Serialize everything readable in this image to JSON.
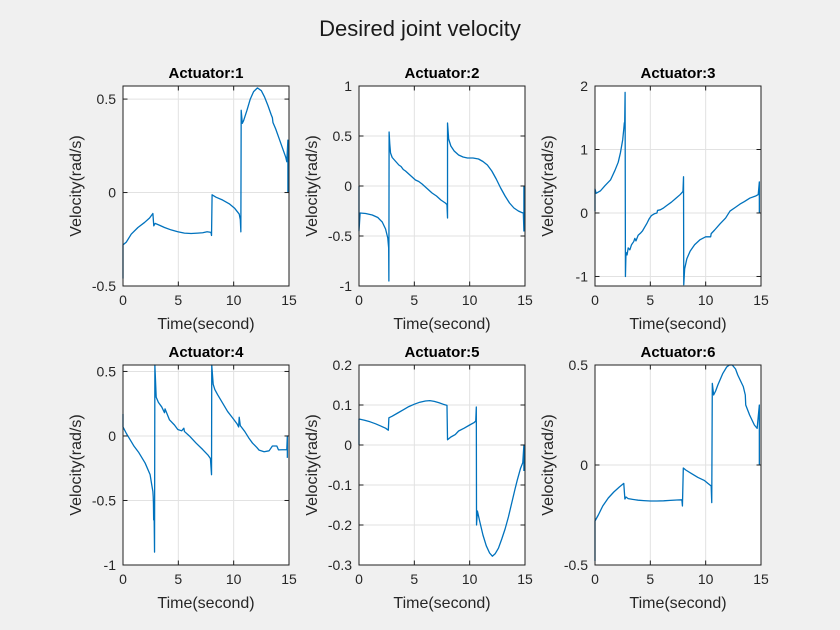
{
  "figure": {
    "title": "Desired joint velocity",
    "bg_color": "#F0F0F0",
    "plot_bg_color": "#FFFFFF",
    "line_color": "#0072BD",
    "axis_color": "#1f1f1f",
    "grid_color": "#E2E2E2",
    "tick_text_color": "#262626",
    "title_text_color": "#000000"
  },
  "chart_data": [
    {
      "type": "line",
      "title": "Actuator:1",
      "xlabel": "Time(second)",
      "ylabel": "Velocity(rad/s)",
      "xlim": [
        0,
        15
      ],
      "ylim": [
        -0.5,
        0.57
      ],
      "xticks": [
        0,
        5,
        10,
        15
      ],
      "yticks": [
        -0.5,
        0,
        0.5
      ],
      "grid": true,
      "points": [
        [
          0,
          -0.46
        ],
        [
          0,
          -0.28
        ],
        [
          0.3,
          -0.265
        ],
        [
          0.75,
          -0.222
        ],
        [
          1.35,
          -0.187
        ],
        [
          1.95,
          -0.16
        ],
        [
          2.4,
          -0.136
        ],
        [
          2.7,
          -0.112
        ],
        [
          2.78,
          -0.178
        ],
        [
          2.9,
          -0.165
        ],
        [
          3.3,
          -0.175
        ],
        [
          3.75,
          -0.187
        ],
        [
          4.35,
          -0.2
        ],
        [
          4.95,
          -0.21
        ],
        [
          5.55,
          -0.217
        ],
        [
          6.15,
          -0.219
        ],
        [
          6.75,
          -0.217
        ],
        [
          7.2,
          -0.215
        ],
        [
          7.6,
          -0.21
        ],
        [
          7.95,
          -0.213
        ],
        [
          8.0,
          -0.23
        ],
        [
          8.05,
          -0.012
        ],
        [
          8.4,
          -0.025
        ],
        [
          9.0,
          -0.04
        ],
        [
          9.6,
          -0.06
        ],
        [
          10.1,
          -0.085
        ],
        [
          10.5,
          -0.115
        ],
        [
          10.6,
          -0.145
        ],
        [
          10.65,
          -0.21
        ],
        [
          10.68,
          0.44
        ],
        [
          10.78,
          0.37
        ],
        [
          10.9,
          0.385
        ],
        [
          11.2,
          0.44
        ],
        [
          11.5,
          0.5
        ],
        [
          11.8,
          0.54
        ],
        [
          12.15,
          0.56
        ],
        [
          12.5,
          0.545
        ],
        [
          12.8,
          0.51
        ],
        [
          13.1,
          0.465
        ],
        [
          13.4,
          0.415
        ],
        [
          13.5,
          0.4
        ],
        [
          13.55,
          0.375
        ],
        [
          13.8,
          0.34
        ],
        [
          14.1,
          0.29
        ],
        [
          14.4,
          0.24
        ],
        [
          14.7,
          0.19
        ],
        [
          14.8,
          0.165
        ],
        [
          14.9,
          0.28
        ],
        [
          14.9,
          0.0
        ]
      ]
    },
    {
      "type": "line",
      "title": "Actuator:2",
      "xlabel": "Time(second)",
      "ylabel": "Velocity(rad/s)",
      "xlim": [
        0,
        15
      ],
      "ylim": [
        -1,
        1
      ],
      "xticks": [
        0,
        5,
        10,
        15
      ],
      "yticks": [
        -1,
        -0.5,
        0,
        0.5,
        1
      ],
      "grid": true,
      "points": [
        [
          0,
          0.0
        ],
        [
          0,
          -0.45
        ],
        [
          0.1,
          -0.27
        ],
        [
          0.6,
          -0.275
        ],
        [
          1.2,
          -0.29
        ],
        [
          1.7,
          -0.315
        ],
        [
          2.1,
          -0.36
        ],
        [
          2.4,
          -0.43
        ],
        [
          2.6,
          -0.52
        ],
        [
          2.68,
          -0.62
        ],
        [
          2.7,
          -0.95
        ],
        [
          2.72,
          0.54
        ],
        [
          2.78,
          0.42
        ],
        [
          2.85,
          0.33
        ],
        [
          3.0,
          0.285
        ],
        [
          3.2,
          0.26
        ],
        [
          3.4,
          0.235
        ],
        [
          3.6,
          0.21
        ],
        [
          3.8,
          0.195
        ],
        [
          4.0,
          0.165
        ],
        [
          4.2,
          0.15
        ],
        [
          4.5,
          0.12
        ],
        [
          4.8,
          0.09
        ],
        [
          5.1,
          0.06
        ],
        [
          5.4,
          0.045
        ],
        [
          5.7,
          0.02
        ],
        [
          6.0,
          -0.01
        ],
        [
          6.3,
          -0.04
        ],
        [
          6.6,
          -0.07
        ],
        [
          7.0,
          -0.1
        ],
        [
          7.4,
          -0.14
        ],
        [
          7.8,
          -0.17
        ],
        [
          7.95,
          -0.185
        ],
        [
          8.0,
          -0.32
        ],
        [
          8.0,
          0.63
        ],
        [
          8.1,
          0.47
        ],
        [
          8.3,
          0.4
        ],
        [
          8.6,
          0.35
        ],
        [
          9.0,
          0.31
        ],
        [
          9.4,
          0.29
        ],
        [
          9.8,
          0.28
        ],
        [
          10.3,
          0.28
        ],
        [
          10.8,
          0.27
        ],
        [
          11.2,
          0.245
        ],
        [
          11.6,
          0.21
        ],
        [
          12.0,
          0.15
        ],
        [
          12.4,
          0.07
        ],
        [
          12.8,
          -0.02
        ],
        [
          13.2,
          -0.1
        ],
        [
          13.6,
          -0.17
        ],
        [
          14.0,
          -0.22
        ],
        [
          14.4,
          -0.25
        ],
        [
          14.7,
          -0.265
        ],
        [
          14.85,
          -0.27
        ],
        [
          14.9,
          -0.45
        ],
        [
          14.9,
          0.0
        ]
      ]
    },
    {
      "type": "line",
      "title": "Actuator:3",
      "xlabel": "Time(second)",
      "ylabel": "Velocity(rad/s)",
      "xlim": [
        0,
        15
      ],
      "ylim": [
        -1.15,
        2
      ],
      "xticks": [
        0,
        5,
        10,
        15
      ],
      "yticks": [
        -1,
        0,
        1,
        2
      ],
      "grid": true,
      "points": [
        [
          0,
          0.03
        ],
        [
          0,
          0.38
        ],
        [
          0.1,
          0.31
        ],
        [
          0.5,
          0.35
        ],
        [
          0.9,
          0.43
        ],
        [
          1.4,
          0.52
        ],
        [
          1.8,
          0.67
        ],
        [
          2.1,
          0.8
        ],
        [
          2.3,
          0.95
        ],
        [
          2.5,
          1.15
        ],
        [
          2.6,
          1.32
        ],
        [
          2.65,
          1.42
        ],
        [
          2.68,
          1.38
        ],
        [
          2.72,
          1.9
        ],
        [
          2.75,
          -1.0
        ],
        [
          2.8,
          -0.62
        ],
        [
          2.9,
          -0.66
        ],
        [
          3.0,
          -0.55
        ],
        [
          3.15,
          -0.58
        ],
        [
          3.3,
          -0.5
        ],
        [
          3.5,
          -0.45
        ],
        [
          3.6,
          -0.4
        ],
        [
          3.7,
          -0.44
        ],
        [
          3.9,
          -0.35
        ],
        [
          4.1,
          -0.32
        ],
        [
          4.3,
          -0.28
        ],
        [
          4.5,
          -0.22
        ],
        [
          4.7,
          -0.16
        ],
        [
          4.9,
          -0.09
        ],
        [
          5.1,
          -0.04
        ],
        [
          5.4,
          -0.01
        ],
        [
          5.6,
          0.0
        ],
        [
          5.65,
          0.04
        ],
        [
          5.9,
          0.05
        ],
        [
          6.2,
          0.08
        ],
        [
          6.5,
          0.12
        ],
        [
          6.9,
          0.17
        ],
        [
          7.3,
          0.23
        ],
        [
          7.7,
          0.29
        ],
        [
          7.95,
          0.34
        ],
        [
          8.0,
          0.57
        ],
        [
          8.02,
          -1.13
        ],
        [
          8.1,
          -0.88
        ],
        [
          8.3,
          -0.72
        ],
        [
          8.6,
          -0.6
        ],
        [
          9.0,
          -0.5
        ],
        [
          9.5,
          -0.42
        ],
        [
          10.0,
          -0.375
        ],
        [
          10.45,
          -0.375
        ],
        [
          10.5,
          -0.325
        ],
        [
          10.8,
          -0.27
        ],
        [
          11.3,
          -0.17
        ],
        [
          11.8,
          -0.08
        ],
        [
          12.2,
          0.03
        ],
        [
          12.7,
          0.09
        ],
        [
          13.1,
          0.14
        ],
        [
          13.5,
          0.18
        ],
        [
          14.0,
          0.235
        ],
        [
          14.55,
          0.27
        ],
        [
          14.75,
          0.29
        ],
        [
          14.85,
          0.49
        ],
        [
          14.85,
          0.0
        ]
      ]
    },
    {
      "type": "line",
      "title": "Actuator:4",
      "xlabel": "Time(second)",
      "ylabel": "Velocity(rad/s)",
      "xlim": [
        0,
        15
      ],
      "ylim": [
        -1,
        0.55
      ],
      "xticks": [
        0,
        5,
        10,
        15
      ],
      "yticks": [
        -1,
        -0.5,
        0,
        0.5
      ],
      "grid": true,
      "points": [
        [
          0,
          0.17
        ],
        [
          0,
          0.07
        ],
        [
          0.3,
          0.02
        ],
        [
          0.65,
          -0.03
        ],
        [
          1.0,
          -0.08
        ],
        [
          1.4,
          -0.125
        ],
        [
          2.0,
          -0.21
        ],
        [
          2.45,
          -0.3
        ],
        [
          2.6,
          -0.38
        ],
        [
          2.7,
          -0.43
        ],
        [
          2.73,
          -0.47
        ],
        [
          2.75,
          -0.52
        ],
        [
          2.77,
          -0.65
        ],
        [
          2.8,
          -0.52
        ],
        [
          2.85,
          -0.9
        ],
        [
          2.88,
          0.55
        ],
        [
          3.0,
          0.3
        ],
        [
          3.2,
          0.26
        ],
        [
          3.5,
          0.225
        ],
        [
          3.75,
          0.18
        ],
        [
          3.8,
          0.21
        ],
        [
          4.2,
          0.125
        ],
        [
          4.65,
          0.085
        ],
        [
          4.95,
          0.05
        ],
        [
          5.3,
          0.04
        ],
        [
          5.5,
          0.06
        ],
        [
          5.55,
          0.035
        ],
        [
          6.0,
          0.0
        ],
        [
          6.6,
          -0.055
        ],
        [
          7.2,
          -0.105
        ],
        [
          7.7,
          -0.15
        ],
        [
          7.9,
          -0.175
        ],
        [
          8.0,
          -0.3
        ],
        [
          8.02,
          0.55
        ],
        [
          8.15,
          0.4
        ],
        [
          8.3,
          0.36
        ],
        [
          8.55,
          0.32
        ],
        [
          9.0,
          0.255
        ],
        [
          9.45,
          0.19
        ],
        [
          9.9,
          0.14
        ],
        [
          10.3,
          0.095
        ],
        [
          10.45,
          0.07
        ],
        [
          10.5,
          0.145
        ],
        [
          10.6,
          0.08
        ],
        [
          11.0,
          0.035
        ],
        [
          11.4,
          -0.02
        ],
        [
          11.7,
          -0.055
        ],
        [
          12.1,
          -0.09
        ],
        [
          12.3,
          -0.11
        ],
        [
          12.75,
          -0.122
        ],
        [
          13.2,
          -0.115
        ],
        [
          13.5,
          -0.078
        ],
        [
          13.9,
          -0.078
        ],
        [
          14.05,
          -0.108
        ],
        [
          14.4,
          -0.107
        ],
        [
          14.8,
          -0.107
        ],
        [
          14.85,
          0.0
        ],
        [
          14.85,
          -0.17
        ]
      ]
    },
    {
      "type": "line",
      "title": "Actuator:5",
      "xlabel": "Time(second)",
      "ylabel": "Velocity(rad/s)",
      "xlim": [
        0,
        15
      ],
      "ylim": [
        -0.3,
        0.2
      ],
      "xticks": [
        0,
        5,
        10,
        15
      ],
      "yticks": [
        -0.3,
        -0.2,
        -0.1,
        0,
        0.1,
        0.2
      ],
      "grid": true,
      "points": [
        [
          0,
          0.0
        ],
        [
          0,
          0.065
        ],
        [
          0.5,
          0.062
        ],
        [
          1.0,
          0.058
        ],
        [
          1.5,
          0.053
        ],
        [
          2.0,
          0.047
        ],
        [
          2.4,
          0.042
        ],
        [
          2.65,
          0.037
        ],
        [
          2.7,
          0.068
        ],
        [
          3.0,
          0.072
        ],
        [
          3.5,
          0.08
        ],
        [
          4.0,
          0.088
        ],
        [
          4.5,
          0.096
        ],
        [
          5.0,
          0.102
        ],
        [
          5.5,
          0.107
        ],
        [
          6.0,
          0.11
        ],
        [
          6.4,
          0.111
        ],
        [
          6.8,
          0.109
        ],
        [
          7.2,
          0.106
        ],
        [
          7.6,
          0.102
        ],
        [
          7.95,
          0.099
        ],
        [
          8.0,
          0.013
        ],
        [
          8.3,
          0.02
        ],
        [
          8.7,
          0.026
        ],
        [
          9.0,
          0.035
        ],
        [
          9.5,
          0.042
        ],
        [
          10.0,
          0.05
        ],
        [
          10.4,
          0.056
        ],
        [
          10.55,
          0.06
        ],
        [
          10.6,
          0.095
        ],
        [
          10.62,
          -0.2
        ],
        [
          10.7,
          -0.165
        ],
        [
          10.9,
          -0.19
        ],
        [
          11.2,
          -0.225
        ],
        [
          11.5,
          -0.252
        ],
        [
          11.8,
          -0.27
        ],
        [
          12.05,
          -0.278
        ],
        [
          12.3,
          -0.272
        ],
        [
          12.6,
          -0.258
        ],
        [
          12.9,
          -0.235
        ],
        [
          13.2,
          -0.21
        ],
        [
          13.5,
          -0.18
        ],
        [
          13.8,
          -0.145
        ],
        [
          14.1,
          -0.11
        ],
        [
          14.3,
          -0.088
        ],
        [
          14.35,
          -0.083
        ],
        [
          14.6,
          -0.058
        ],
        [
          14.8,
          -0.044
        ],
        [
          14.9,
          0.0
        ],
        [
          14.9,
          -0.065
        ]
      ]
    },
    {
      "type": "line",
      "title": "Actuator:6",
      "xlabel": "Time(second)",
      "ylabel": "Velocity(rad/s)",
      "xlim": [
        0,
        15
      ],
      "ylim": [
        -0.5,
        0.5
      ],
      "xticks": [
        0,
        5,
        10,
        15
      ],
      "yticks": [
        -0.5,
        0,
        0.5
      ],
      "grid": true,
      "points": [
        [
          0,
          -0.48
        ],
        [
          0,
          -0.28
        ],
        [
          0.3,
          -0.25
        ],
        [
          0.7,
          -0.205
        ],
        [
          1.2,
          -0.165
        ],
        [
          1.7,
          -0.135
        ],
        [
          2.2,
          -0.11
        ],
        [
          2.6,
          -0.092
        ],
        [
          2.7,
          -0.17
        ],
        [
          2.8,
          -0.16
        ],
        [
          3.0,
          -0.168
        ],
        [
          3.4,
          -0.172
        ],
        [
          3.9,
          -0.176
        ],
        [
          4.4,
          -0.178
        ],
        [
          5.0,
          -0.18
        ],
        [
          5.6,
          -0.18
        ],
        [
          6.2,
          -0.179
        ],
        [
          6.8,
          -0.177
        ],
        [
          7.4,
          -0.175
        ],
        [
          7.85,
          -0.174
        ],
        [
          7.9,
          -0.205
        ],
        [
          7.98,
          -0.015
        ],
        [
          8.2,
          -0.025
        ],
        [
          8.7,
          -0.042
        ],
        [
          9.3,
          -0.062
        ],
        [
          9.9,
          -0.078
        ],
        [
          10.2,
          -0.092
        ],
        [
          10.5,
          -0.105
        ],
        [
          10.55,
          -0.188
        ],
        [
          10.6,
          0.408
        ],
        [
          10.72,
          0.35
        ],
        [
          10.9,
          0.37
        ],
        [
          11.1,
          0.4
        ],
        [
          11.55,
          0.458
        ],
        [
          11.9,
          0.49
        ],
        [
          12.15,
          0.5
        ],
        [
          12.4,
          0.5
        ],
        [
          12.7,
          0.48
        ],
        [
          12.9,
          0.45
        ],
        [
          13.2,
          0.415
        ],
        [
          13.4,
          0.392
        ],
        [
          13.58,
          0.35
        ],
        [
          13.62,
          0.3
        ],
        [
          13.97,
          0.25
        ],
        [
          14.4,
          0.2
        ],
        [
          14.65,
          0.183
        ],
        [
          14.85,
          0.3
        ],
        [
          14.85,
          0.0
        ]
      ]
    }
  ]
}
